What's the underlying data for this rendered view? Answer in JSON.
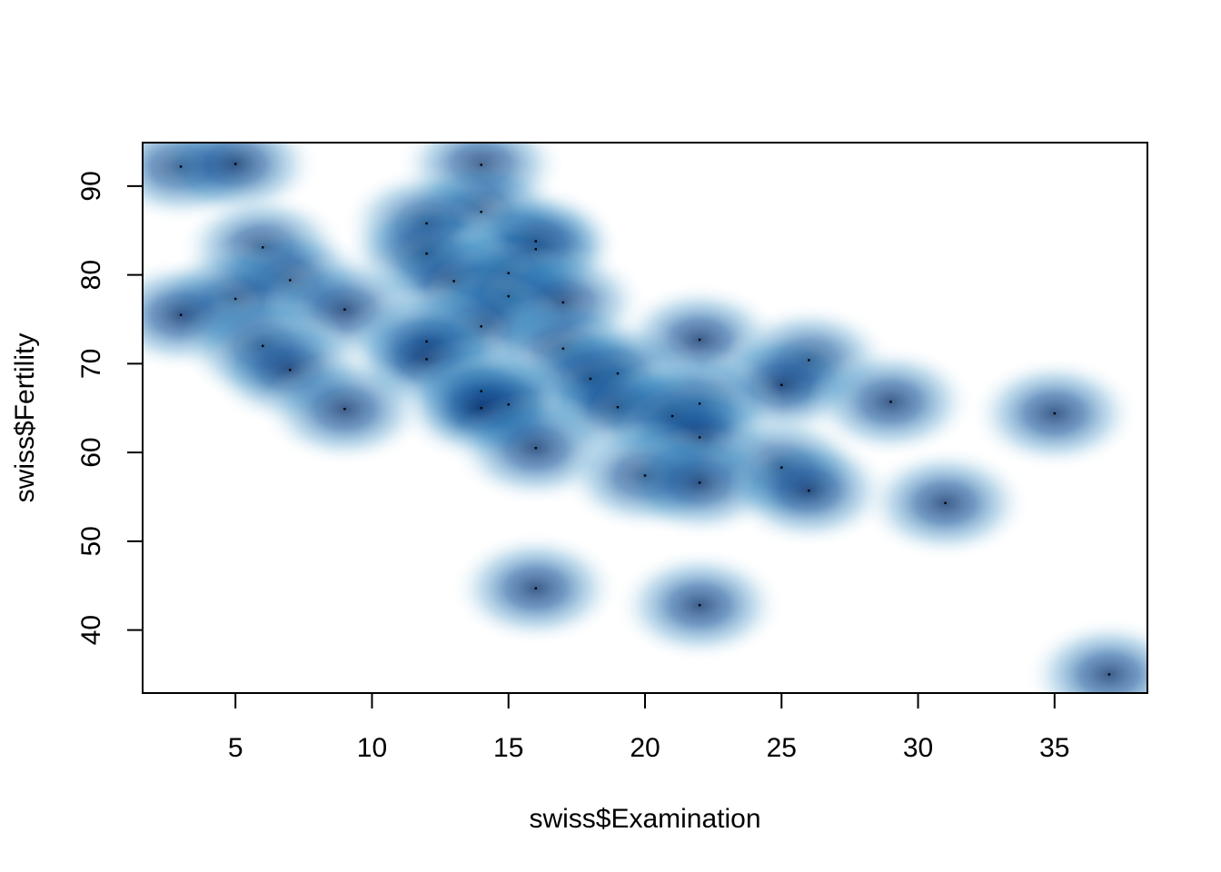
{
  "chart_data": {
    "type": "scatter",
    "variant": "smoothed-density-scatter",
    "title": "",
    "xlabel": "swiss$Examination",
    "ylabel": "swiss$Fertility",
    "xlim": [
      1.6,
      38.4
    ],
    "ylim": [
      32.9,
      94.9
    ],
    "x_ticks": [
      5,
      10,
      15,
      20,
      25,
      30,
      35
    ],
    "y_ticks": [
      40,
      50,
      60,
      70,
      80,
      90
    ],
    "grid": false,
    "legend": "none",
    "colors": {
      "density_high": "#08306b",
      "density_mid": "#2171b5",
      "density_low": "#deebf7",
      "point": "#000000"
    },
    "points": [
      {
        "x": 3,
        "y": 92.2
      },
      {
        "x": 5,
        "y": 92.5
      },
      {
        "x": 14,
        "y": 92.4
      },
      {
        "x": 14,
        "y": 87.1
      },
      {
        "x": 12,
        "y": 85.8
      },
      {
        "x": 6,
        "y": 83.1
      },
      {
        "x": 16,
        "y": 83.8
      },
      {
        "x": 16,
        "y": 82.9
      },
      {
        "x": 12,
        "y": 82.4
      },
      {
        "x": 15,
        "y": 80.2
      },
      {
        "x": 7,
        "y": 79.4
      },
      {
        "x": 13,
        "y": 79.3
      },
      {
        "x": 15,
        "y": 77.6
      },
      {
        "x": 5,
        "y": 77.3
      },
      {
        "x": 17,
        "y": 76.9
      },
      {
        "x": 9,
        "y": 76.1
      },
      {
        "x": 3,
        "y": 75.5
      },
      {
        "x": 14,
        "y": 74.2
      },
      {
        "x": 22,
        "y": 72.7
      },
      {
        "x": 12,
        "y": 72.5
      },
      {
        "x": 6,
        "y": 72.0
      },
      {
        "x": 17,
        "y": 71.7
      },
      {
        "x": 12,
        "y": 70.5
      },
      {
        "x": 26,
        "y": 70.4
      },
      {
        "x": 7,
        "y": 69.3
      },
      {
        "x": 19,
        "y": 68.9
      },
      {
        "x": 18,
        "y": 68.3
      },
      {
        "x": 25,
        "y": 67.6
      },
      {
        "x": 14,
        "y": 66.9
      },
      {
        "x": 29,
        "y": 65.7
      },
      {
        "x": 22,
        "y": 65.5
      },
      {
        "x": 15,
        "y": 65.4
      },
      {
        "x": 19,
        "y": 65.1
      },
      {
        "x": 14,
        "y": 65.0
      },
      {
        "x": 9,
        "y": 64.9
      },
      {
        "x": 35,
        "y": 64.4
      },
      {
        "x": 21,
        "y": 64.1
      },
      {
        "x": 22,
        "y": 61.7
      },
      {
        "x": 16,
        "y": 60.5
      },
      {
        "x": 25,
        "y": 58.3
      },
      {
        "x": 20,
        "y": 57.4
      },
      {
        "x": 22,
        "y": 56.6
      },
      {
        "x": 26,
        "y": 55.7
      },
      {
        "x": 31,
        "y": 54.3
      },
      {
        "x": 16,
        "y": 44.7
      },
      {
        "x": 22,
        "y": 42.8
      },
      {
        "x": 37,
        "y": 35.0
      }
    ]
  }
}
